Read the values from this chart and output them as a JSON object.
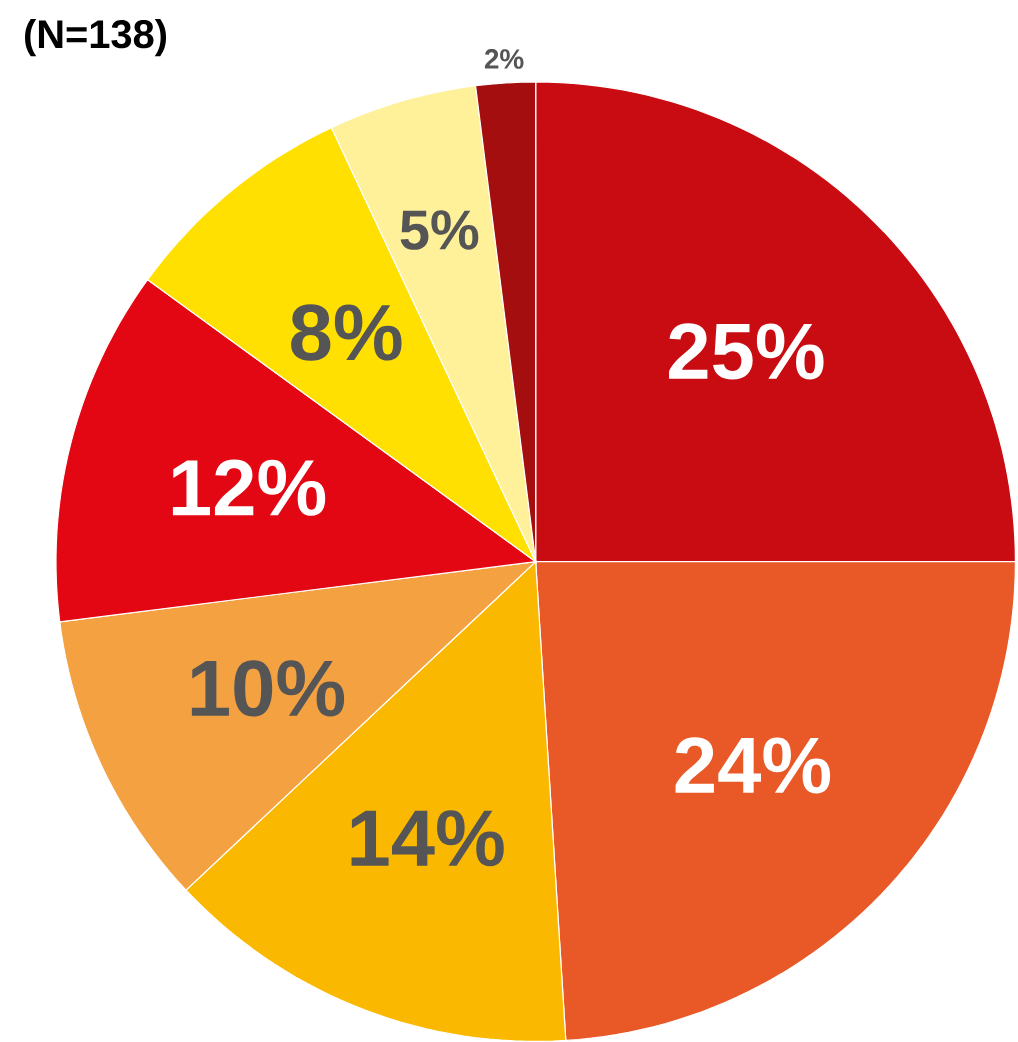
{
  "chart_data": {
    "type": "pie",
    "title": "(N=138)",
    "categories": [
      null,
      null,
      null,
      null,
      null,
      null,
      null,
      null
    ],
    "values": [
      25,
      24,
      14,
      10,
      12,
      8,
      5,
      2
    ],
    "colors": [
      "#c90c12",
      "#e95927",
      "#fbb800",
      "#f4a141",
      "#e30613",
      "#ffe000",
      "#fff09a",
      "#a50e0e"
    ],
    "value_labels": [
      "25%",
      "24%",
      "14%",
      "10%",
      "12%",
      "8%",
      "5%",
      "2%"
    ]
  }
}
